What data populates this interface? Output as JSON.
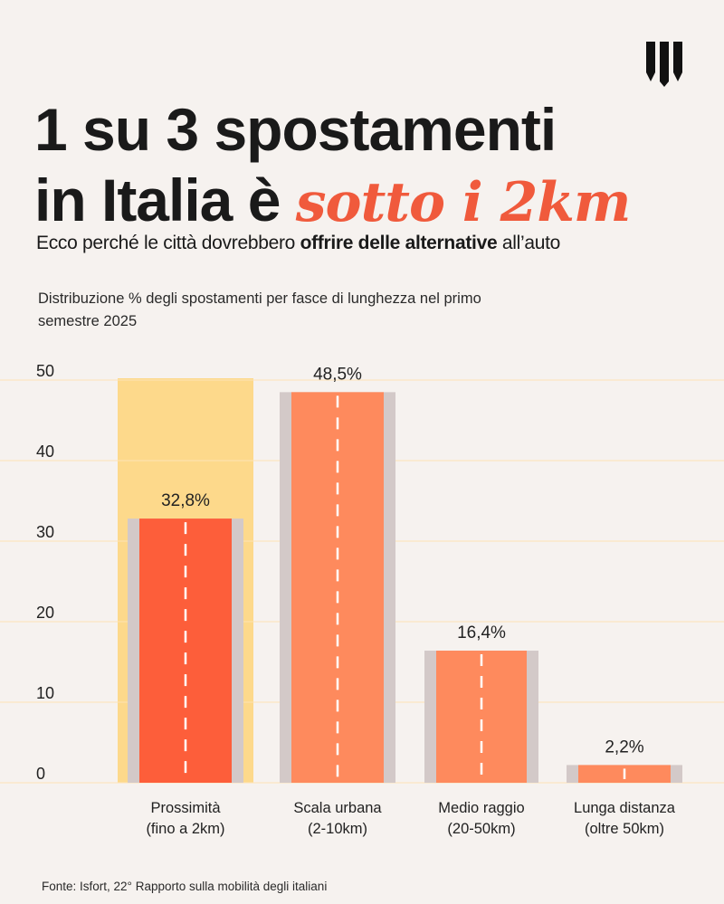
{
  "header": {
    "title_line1": "1 su 3 spostamenti",
    "title_line2_prefix": "in Italia è ",
    "title_line2_accent": "sotto i 2km",
    "subtitle_prefix": "Ecco perché le città dovrebbero ",
    "subtitle_bold": "offrire delle alternative",
    "subtitle_suffix": " all’auto"
  },
  "chart_description": "Distribuzione % degli spostamenti per fasce di lunghezza nel primo semestre 2025",
  "source": "Fonte: Isfort, 22° Rapporto sulla mobilità degli italiani",
  "colors": {
    "background": "#f6f2ef",
    "accent": "#f05a3c",
    "bar_highlight": "#fd5e3a",
    "bar_default": "#fe8a5d",
    "bar_shadow": "#d3c9c8",
    "highlight_band": "#fdd98b",
    "grid": "#fde2b5"
  },
  "icons": {
    "logo": "brand-logo-icon"
  },
  "chart_data": {
    "type": "bar",
    "categories": [
      [
        "Prossimità",
        "(fino a 2km)"
      ],
      [
        "Scala urbana",
        "(2-10km)"
      ],
      [
        "Medio raggio",
        "(20-50km)"
      ],
      [
        "Lunga distanza",
        "(oltre 50km)"
      ]
    ],
    "values": [
      32.8,
      48.5,
      16.4,
      2.2
    ],
    "value_labels": [
      "32,8%",
      "48,5%",
      "16,4%",
      "2,2%"
    ],
    "highlight_index": 0,
    "yticks": [
      0,
      10,
      20,
      30,
      40,
      50
    ],
    "ylim": [
      0,
      50
    ],
    "grid": true,
    "title": "",
    "xlabel": "",
    "ylabel": ""
  }
}
